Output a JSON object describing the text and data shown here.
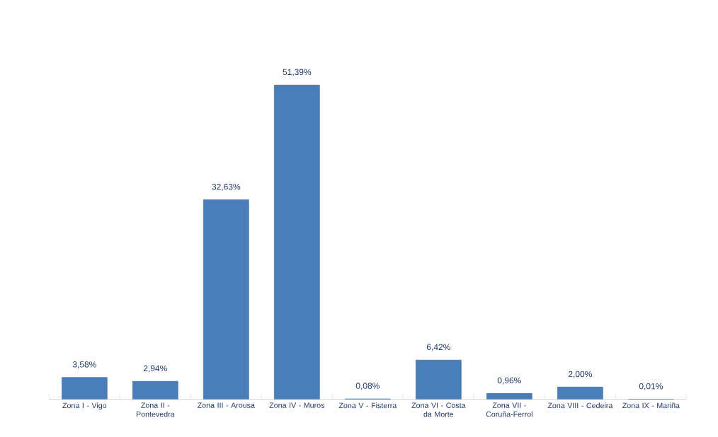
{
  "chart_data": {
    "type": "bar",
    "categories": [
      "Zona I - Vigo",
      "Zona II - Pontevedra",
      "Zona III - Arousa",
      "Zona IV - Muros",
      "Zona V - Fisterra",
      "Zona VI - Costa da Morte",
      "Zona VII - Coruña-Ferrol",
      "Zona VIII - Cedeira",
      "Zona IX - Mariña"
    ],
    "values": [
      3.58,
      2.94,
      32.63,
      51.39,
      0.08,
      6.42,
      0.96,
      2.0,
      0.01
    ],
    "value_labels": [
      "3,58%",
      "2,94%",
      "32,63%",
      "51,39%",
      "0,08%",
      "6,42%",
      "0,96%",
      "2,00%",
      "0,01%"
    ],
    "color": "#4a7ebb"
  }
}
